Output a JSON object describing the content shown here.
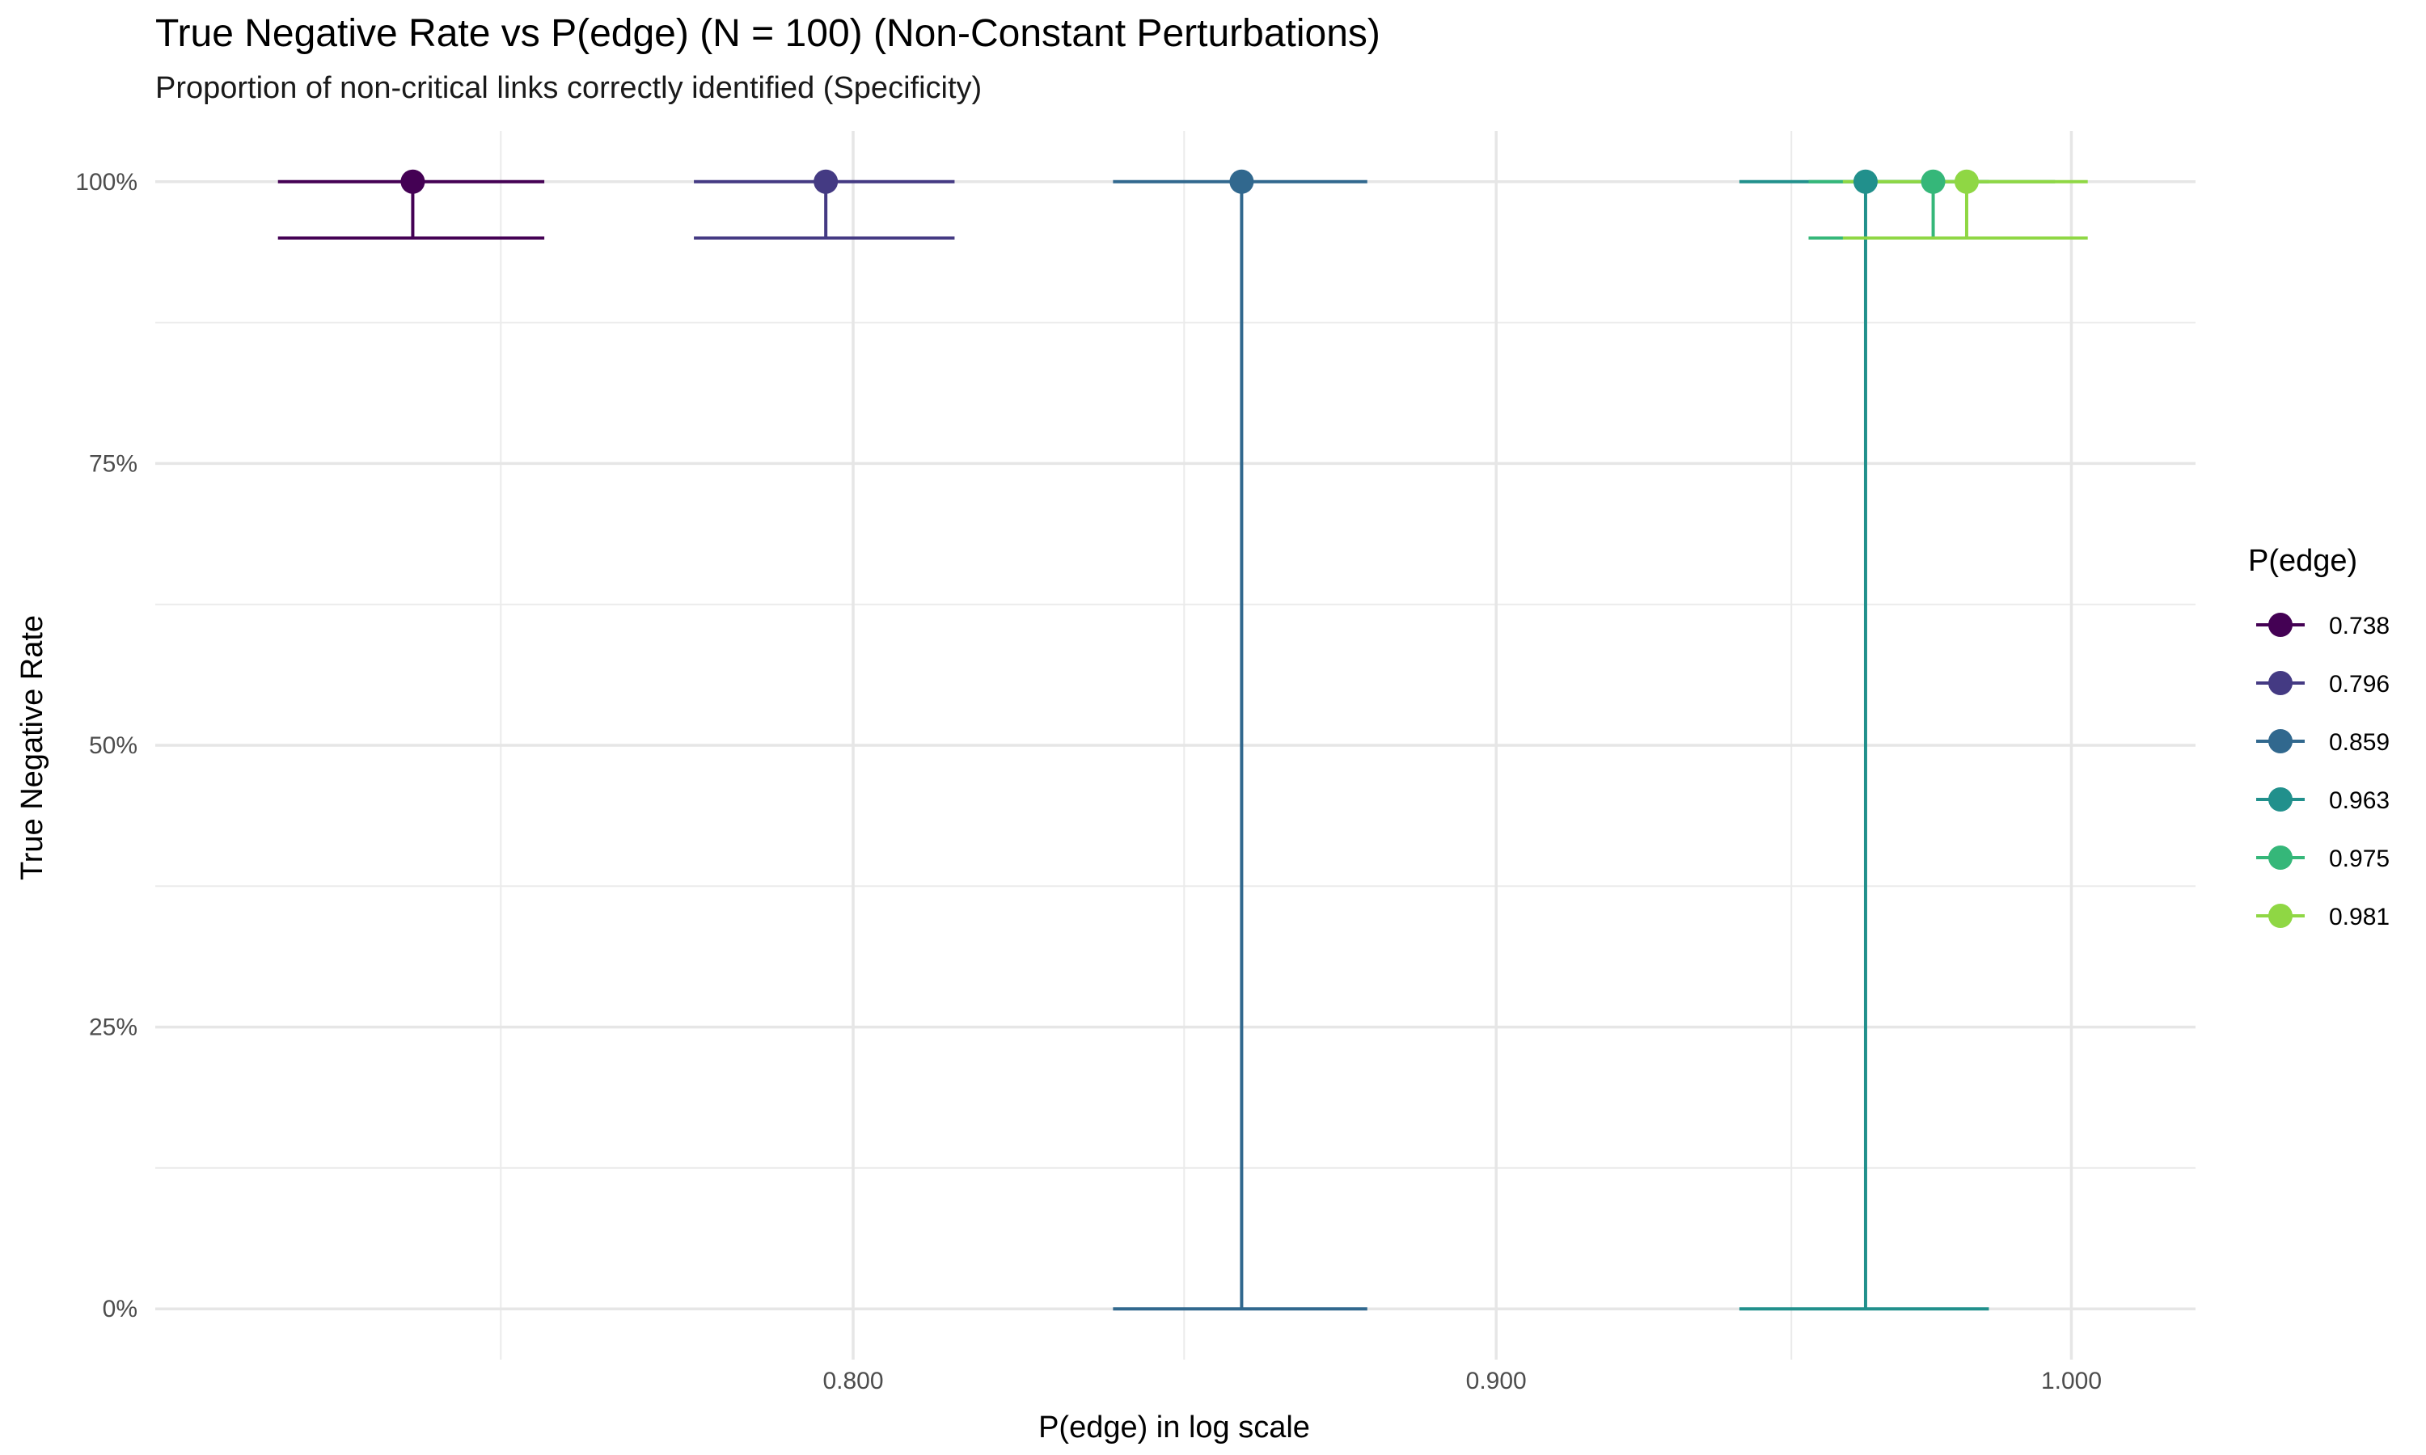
{
  "chart_data": {
    "type": "scatter",
    "title": "True Negative Rate vs P(edge) (N = 100) (Non-Constant Perturbations)",
    "subtitle": "Proportion of non-critical links correctly identified (Specificity)",
    "xlabel": "P(edge) in log scale",
    "ylabel": "True Negative Rate",
    "x_scale": "log",
    "xlim": [
      0.704,
      1.023
    ],
    "ylim": [
      -0.045,
      1.045
    ],
    "x_ticks": [
      {
        "value": 0.8,
        "label": "0.800"
      },
      {
        "value": 0.9,
        "label": "0.900"
      },
      {
        "value": 1.0,
        "label": "1.000"
      }
    ],
    "x_minor_ticks": [
      0.75,
      0.85,
      0.95
    ],
    "y_ticks": [
      {
        "value": 0.0,
        "label": "0%"
      },
      {
        "value": 0.25,
        "label": "25%"
      },
      {
        "value": 0.5,
        "label": "50%"
      },
      {
        "value": 0.75,
        "label": "75%"
      },
      {
        "value": 1.0,
        "label": "100%"
      }
    ],
    "y_minor_ticks": [
      0.125,
      0.375,
      0.625,
      0.875
    ],
    "grid": true,
    "legend": {
      "title": "P(edge)",
      "position": "right"
    },
    "series": [
      {
        "name": "0.738",
        "x": 0.738,
        "y": 1.0,
        "lower": 0.95,
        "upper": 1.0,
        "cap_half": 0.018,
        "color": "#440154"
      },
      {
        "name": "0.796",
        "x": 0.796,
        "y": 1.0,
        "lower": 0.95,
        "upper": 1.0,
        "cap_half": 0.019,
        "color": "#443A83"
      },
      {
        "name": "0.859",
        "x": 0.859,
        "y": 1.0,
        "lower": 0.0,
        "upper": 1.0,
        "cap_half": 0.02,
        "color": "#31688E"
      },
      {
        "name": "0.963",
        "x": 0.963,
        "y": 1.0,
        "lower": 0.0,
        "upper": 1.0,
        "cap_half": 0.022,
        "color": "#21908C"
      },
      {
        "name": "0.975",
        "x": 0.975,
        "y": 1.0,
        "lower": 0.95,
        "upper": 1.0,
        "cap_half": 0.022,
        "color": "#35B779"
      },
      {
        "name": "0.981",
        "x": 0.981,
        "y": 1.0,
        "lower": 0.95,
        "upper": 1.0,
        "cap_half": 0.022,
        "color": "#8FD744"
      }
    ]
  }
}
